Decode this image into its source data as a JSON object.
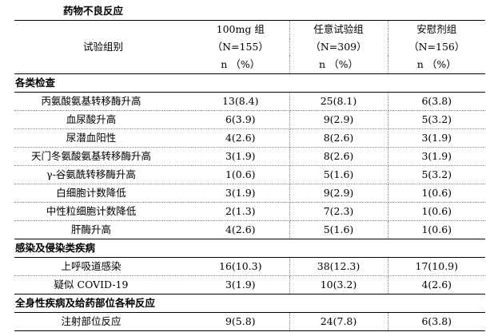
{
  "title": "药物不良反应",
  "header": {
    "row_label": "试验组别",
    "columns": [
      {
        "name": "100mg 组",
        "n": "（N=155）",
        "unit": "n （%）"
      },
      {
        "name": "任意试验组",
        "n": "（N=309）",
        "unit": "n （%）"
      },
      {
        "name": "安慰剂组",
        "n": "（N=156）",
        "unit": "n （%）"
      }
    ]
  },
  "sections": [
    {
      "title": "各类检查",
      "rows": [
        {
          "label": "丙氨酸氨基转移酶升高",
          "values": [
            "13(8.4)",
            "25(8.1)",
            "6(3.8)"
          ]
        },
        {
          "label": "血尿酸升高",
          "values": [
            "6(3.9)",
            "9(2.9)",
            "5(3.2)"
          ]
        },
        {
          "label": "尿潜血阳性",
          "values": [
            "4(2.6)",
            "8(2.6)",
            "3(1.9)"
          ]
        },
        {
          "label": "天门冬氨酸氨基转移酶升高",
          "values": [
            "3(1.9)",
            "8(2.6)",
            "3(1.9)"
          ]
        },
        {
          "label": "γ-谷氨酰转移酶升高",
          "values": [
            "1(0.6)",
            "5(1.6)",
            "5(3.2)"
          ]
        },
        {
          "label": "白细胞计数降低",
          "values": [
            "3(1.9)",
            "9(2.9)",
            "1(0.6)"
          ]
        },
        {
          "label": "中性粒细胞计数降低",
          "values": [
            "2(1.3)",
            "7(2.3)",
            "1(0.6)"
          ]
        },
        {
          "label": "肝酶升高",
          "values": [
            "4(2.6)",
            "5(1.6)",
            "1(0.6)"
          ]
        }
      ]
    },
    {
      "title": "感染及侵染类疾病",
      "rows": [
        {
          "label": "上呼吸道感染",
          "values": [
            "16(10.3)",
            "38(12.3)",
            "17(10.9)"
          ]
        },
        {
          "label": "疑似 COVID-19",
          "values": [
            "3(1.9)",
            "10(3.2)",
            "4(2.6)"
          ]
        }
      ]
    },
    {
      "title": "全身性疾病及给药部位各种反应",
      "rows": [
        {
          "label": "注射部位反应",
          "values": [
            "9(5.8)",
            "24(7.8)",
            "6(3.8)"
          ]
        }
      ]
    }
  ]
}
